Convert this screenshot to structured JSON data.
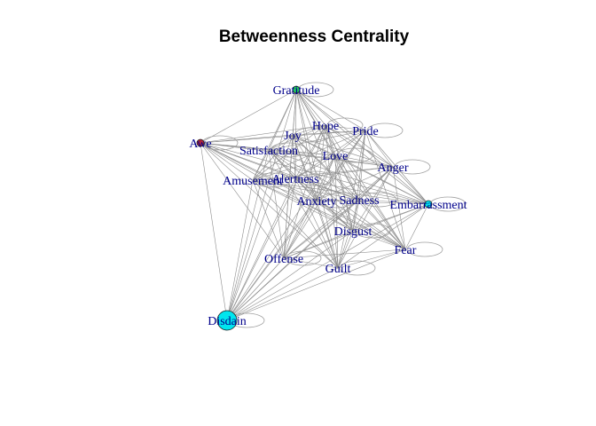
{
  "title": "Betweenness Centrality",
  "colors": {
    "high": "#00e5ee",
    "mid": "#22c55e",
    "low": "#b0233a"
  },
  "nodes": [
    {
      "id": "Gratitude",
      "color": "mid",
      "size": 4
    },
    {
      "id": "Awe",
      "color": "low",
      "size": 4
    },
    {
      "id": "Hope"
    },
    {
      "id": "Pride"
    },
    {
      "id": "Joy"
    },
    {
      "id": "Satisfaction"
    },
    {
      "id": "Love"
    },
    {
      "id": "Anger"
    },
    {
      "id": "Alertness"
    },
    {
      "id": "Amusement"
    },
    {
      "id": "Anxiety"
    },
    {
      "id": "Sadness"
    },
    {
      "id": "Embarrassment",
      "color": "high",
      "size": 4
    },
    {
      "id": "Disgust"
    },
    {
      "id": "Fear"
    },
    {
      "id": "Offense"
    },
    {
      "id": "Guilt"
    },
    {
      "id": "Disdain",
      "color": "high",
      "size": 11
    }
  ]
}
